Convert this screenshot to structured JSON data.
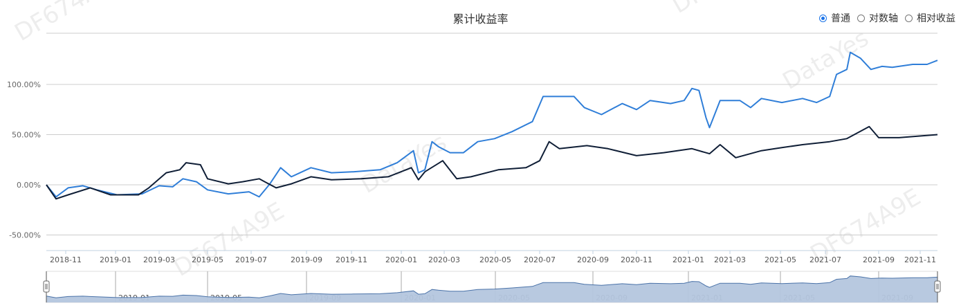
{
  "title": "累计收益率",
  "legend": {
    "options": [
      {
        "label": "普通",
        "selected": true
      },
      {
        "label": "对数轴",
        "selected": false
      },
      {
        "label": "相对收益",
        "selected": false
      }
    ]
  },
  "watermarks": [
    "DF674A9E",
    "DataYes"
  ],
  "colors": {
    "series_blue": "#2f7ed8",
    "series_dark": "#0f1e36",
    "grid": "#cccccc",
    "zoom_fill": "#b4c6de",
    "zoom_line": "#4a72a8"
  },
  "chart_data": {
    "type": "line",
    "title": "累计收益率",
    "yaxis": {
      "ticks": [
        "-50.00%",
        "0.00%",
        "50.00%",
        "100.00%"
      ],
      "tick_values": [
        -50,
        0,
        50,
        100
      ],
      "range": [
        -65,
        150
      ],
      "grid": true
    },
    "xaxis": {
      "ticks": [
        "2018-11",
        "2019-01",
        "2019-03",
        "2019-05",
        "2019-07",
        "2019-09",
        "2019-11",
        "2020-01",
        "2020-03",
        "2020-05",
        "2020-07",
        "2020-09",
        "2020-11",
        "2021-01",
        "2021-03",
        "2021-05",
        "2021-07",
        "2021-09",
        "2021-11"
      ]
    },
    "zoom_ticks": [
      "2019-01",
      "2019-05",
      "2019-09",
      "2020-01",
      "2020-05",
      "2020-09",
      "2021-01",
      "2021-05",
      "2021-09"
    ],
    "series": [
      {
        "color": "#2f7ed8",
        "points": [
          [
            "2018-10-18",
            0
          ],
          [
            "2018-10-25",
            -12
          ],
          [
            "2018-11-04",
            -3
          ],
          [
            "2018-11-22",
            -1
          ],
          [
            "2018-12-09",
            -5
          ],
          [
            "2019-01-03",
            -10
          ],
          [
            "2019-02-06",
            -9
          ],
          [
            "2019-03-01",
            -1
          ],
          [
            "2019-03-18",
            -2
          ],
          [
            "2019-03-31",
            6
          ],
          [
            "2019-04-17",
            3
          ],
          [
            "2019-05-01",
            -5
          ],
          [
            "2019-05-30",
            -9
          ],
          [
            "2019-06-28",
            -7
          ],
          [
            "2019-07-10",
            -12
          ],
          [
            "2019-07-22",
            1
          ],
          [
            "2019-08-03",
            17
          ],
          [
            "2019-08-15",
            8
          ],
          [
            "2019-09-07",
            17
          ],
          [
            "2019-10-05",
            12
          ],
          [
            "2019-11-03",
            13
          ],
          [
            "2019-12-06",
            15
          ],
          [
            "2019-12-27",
            22
          ],
          [
            "2020-01-18",
            34
          ],
          [
            "2020-01-25",
            12
          ],
          [
            "2020-02-03",
            15
          ],
          [
            "2020-02-13",
            43
          ],
          [
            "2020-02-22",
            38
          ],
          [
            "2020-03-08",
            32
          ],
          [
            "2020-03-24",
            32
          ],
          [
            "2020-04-10",
            43
          ],
          [
            "2020-04-30",
            46
          ],
          [
            "2020-05-24",
            53
          ],
          [
            "2020-06-21",
            63
          ],
          [
            "2020-07-05",
            88
          ],
          [
            "2020-08-10",
            88
          ],
          [
            "2020-08-22",
            77
          ],
          [
            "2020-09-13",
            70
          ],
          [
            "2020-10-12",
            81
          ],
          [
            "2020-11-01",
            75
          ],
          [
            "2020-11-17",
            84
          ],
          [
            "2020-12-11",
            81
          ],
          [
            "2020-12-27",
            84
          ],
          [
            "2021-01-06",
            96
          ],
          [
            "2021-01-16",
            94
          ],
          [
            "2021-01-26",
            67
          ],
          [
            "2021-01-31",
            57
          ],
          [
            "2021-02-15",
            84
          ],
          [
            "2021-03-13",
            84
          ],
          [
            "2021-03-26",
            77
          ],
          [
            "2021-04-08",
            86
          ],
          [
            "2021-05-03",
            82
          ],
          [
            "2021-05-31",
            86
          ],
          [
            "2021-06-19",
            82
          ],
          [
            "2021-07-06",
            88
          ],
          [
            "2021-07-14",
            110
          ],
          [
            "2021-07-26",
            115
          ],
          [
            "2021-07-30",
            132
          ],
          [
            "2021-08-11",
            126
          ],
          [
            "2021-08-23",
            115
          ],
          [
            "2021-09-06",
            118
          ],
          [
            "2021-09-21",
            117
          ],
          [
            "2021-10-21",
            120
          ],
          [
            "2021-11-11",
            120
          ],
          [
            "2021-11-26",
            124
          ]
        ]
      },
      {
        "color": "#0f1e36",
        "points": [
          [
            "2018-10-18",
            0
          ],
          [
            "2018-10-25",
            -14
          ],
          [
            "2018-11-04",
            -10
          ],
          [
            "2018-12-01",
            -3
          ],
          [
            "2018-12-26",
            -10
          ],
          [
            "2019-02-01",
            -10
          ],
          [
            "2019-02-15",
            -3
          ],
          [
            "2019-03-10",
            12
          ],
          [
            "2019-03-27",
            15
          ],
          [
            "2019-04-04",
            22
          ],
          [
            "2019-04-22",
            20
          ],
          [
            "2019-05-01",
            6
          ],
          [
            "2019-05-30",
            1
          ],
          [
            "2019-06-19",
            3
          ],
          [
            "2019-07-10",
            6
          ],
          [
            "2019-07-29",
            -3
          ],
          [
            "2019-08-15",
            1
          ],
          [
            "2019-09-07",
            8
          ],
          [
            "2019-10-05",
            5
          ],
          [
            "2019-11-13",
            6
          ],
          [
            "2019-12-16",
            8
          ],
          [
            "2020-01-15",
            17
          ],
          [
            "2020-01-25",
            5
          ],
          [
            "2020-02-03",
            13
          ],
          [
            "2020-02-28",
            24
          ],
          [
            "2020-03-16",
            6
          ],
          [
            "2020-04-02",
            8
          ],
          [
            "2020-05-05",
            15
          ],
          [
            "2020-06-12",
            17
          ],
          [
            "2020-07-01",
            24
          ],
          [
            "2020-07-12",
            43
          ],
          [
            "2020-07-24",
            36
          ],
          [
            "2020-08-25",
            39
          ],
          [
            "2020-09-22",
            36
          ],
          [
            "2020-11-01",
            29
          ],
          [
            "2020-12-03",
            32
          ],
          [
            "2021-01-06",
            36
          ],
          [
            "2021-01-31",
            31
          ],
          [
            "2021-02-15",
            40
          ],
          [
            "2021-03-08",
            27
          ],
          [
            "2021-04-08",
            34
          ],
          [
            "2021-05-03",
            37
          ],
          [
            "2021-05-31",
            40
          ],
          [
            "2021-07-06",
            43
          ],
          [
            "2021-07-26",
            46
          ],
          [
            "2021-08-21",
            58
          ],
          [
            "2021-09-01",
            47
          ],
          [
            "2021-10-01",
            47
          ],
          [
            "2021-11-26",
            50
          ]
        ]
      }
    ]
  }
}
